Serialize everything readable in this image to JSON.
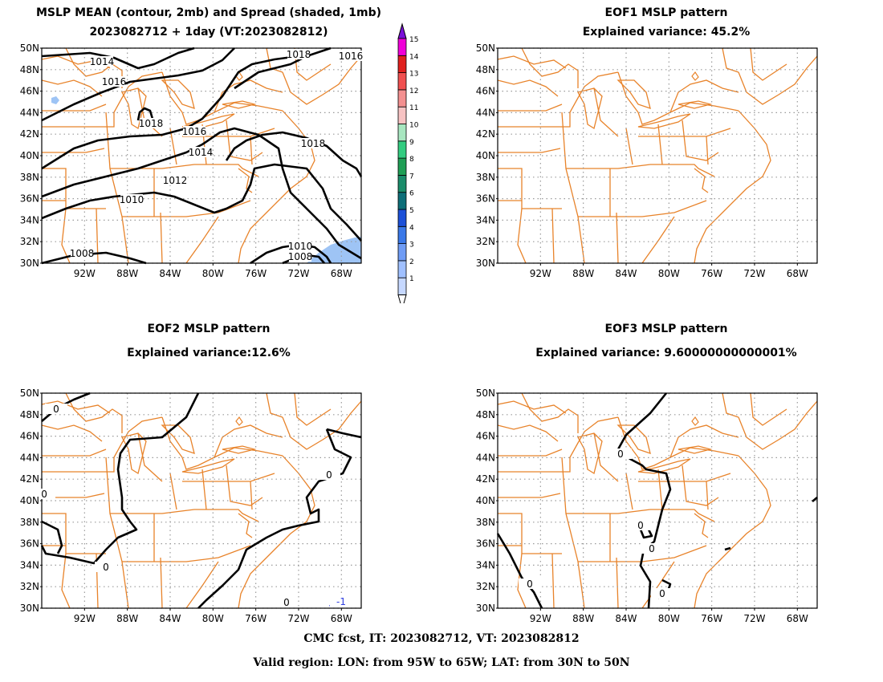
{
  "panels": [
    {
      "id": "p1",
      "title": "MSLP MEAN (contour, 2mb) and Spread (shaded, 1mb)",
      "subtitle": "2023082712 + 1day (VT:2023082812)"
    },
    {
      "id": "p2",
      "title": "EOF1 MSLP pattern",
      "subtitle": "Explained variance: 45.2%"
    },
    {
      "id": "p3",
      "title": "EOF2 MSLP pattern",
      "subtitle": "Explained variance:12.6%"
    },
    {
      "id": "p4",
      "title": "EOF3 MSLP pattern",
      "subtitle": "Explained variance: 9.60000000000001%"
    }
  ],
  "axes": {
    "lat_labels": [
      "30N",
      "32N",
      "34N",
      "36N",
      "38N",
      "40N",
      "42N",
      "44N",
      "46N",
      "48N",
      "50N"
    ],
    "lon_labels": [
      "92W",
      "88W",
      "84W",
      "80W",
      "76W",
      "72W",
      "68W"
    ]
  },
  "colorbar": {
    "levels": [
      "1",
      "2",
      "3",
      "4",
      "5",
      "6",
      "7",
      "8",
      "9",
      "10",
      "11",
      "12",
      "13",
      "14",
      "15"
    ],
    "colors": [
      "#c6d8ff",
      "#a0c0ff",
      "#6f9cf5",
      "#3a78e8",
      "#1c50d8",
      "#0d6e78",
      "#1a8c6a",
      "#1f9e55",
      "#33cc80",
      "#a8e6c0",
      "#f7c3c3",
      "#f39090",
      "#f05050",
      "#e0201e",
      "#f000d8"
    ],
    "top_color": "#7a10d8"
  },
  "mean_contour_labels": [
    "1014",
    "1016",
    "1018",
    "1018",
    "1016",
    "1018",
    "1016",
    "1014",
    "1012",
    "1010",
    "1010",
    "1008",
    "1008"
  ],
  "eof2_labels": [
    "0",
    "0",
    "0",
    "0",
    "0",
    "-1"
  ],
  "eof3_labels": [
    "0",
    "0",
    "0",
    "0",
    "0"
  ],
  "colors": {
    "state_lines": "#e8832a",
    "contours": "#000000",
    "spread_fill": "#9ec4f5",
    "grid": "#9a9a9a"
  },
  "footer": {
    "line1": "CMC fcst, IT: 2023082712, VT: 2023082812",
    "line2": "Valid region: LON: from 95W to 65W; LAT: from 30N to 50N"
  }
}
